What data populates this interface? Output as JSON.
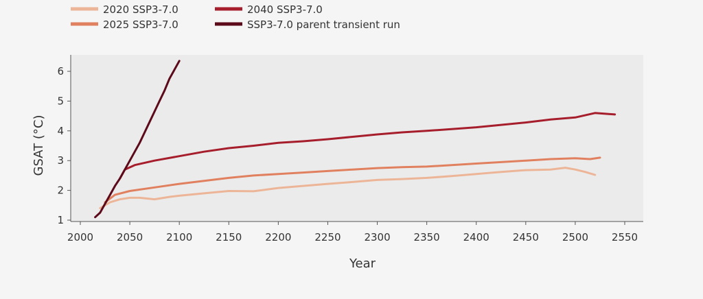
{
  "chart_data": {
    "type": "line",
    "title": "",
    "xlabel": "Year",
    "ylabel": "GSAT (°C)",
    "xlim": [
      2000,
      2560
    ],
    "ylim": [
      1,
      6.5
    ],
    "xticks": [
      2000,
      2050,
      2100,
      2150,
      2200,
      2250,
      2300,
      2350,
      2400,
      2450,
      2500,
      2550
    ],
    "yticks": [
      1,
      2,
      3,
      4,
      5,
      6
    ],
    "grid": false,
    "legend": "top-left, above plot, two columns",
    "series": [
      {
        "name": "2020 SSP3-7.0",
        "color": "#edb597",
        "points": [
          [
            2020,
            1.4
          ],
          [
            2030,
            1.6
          ],
          [
            2040,
            1.7
          ],
          [
            2050,
            1.75
          ],
          [
            2060,
            1.75
          ],
          [
            2075,
            1.7
          ],
          [
            2090,
            1.78
          ],
          [
            2100,
            1.82
          ],
          [
            2125,
            1.9
          ],
          [
            2150,
            1.98
          ],
          [
            2175,
            1.97
          ],
          [
            2200,
            2.08
          ],
          [
            2225,
            2.15
          ],
          [
            2250,
            2.22
          ],
          [
            2275,
            2.28
          ],
          [
            2300,
            2.35
          ],
          [
            2325,
            2.38
          ],
          [
            2350,
            2.42
          ],
          [
            2375,
            2.48
          ],
          [
            2400,
            2.55
          ],
          [
            2425,
            2.62
          ],
          [
            2450,
            2.68
          ],
          [
            2475,
            2.7
          ],
          [
            2490,
            2.76
          ],
          [
            2500,
            2.7
          ],
          [
            2510,
            2.62
          ],
          [
            2520,
            2.52
          ]
        ]
      },
      {
        "name": "2025 SSP3-7.0",
        "color": "#e0805e",
        "points": [
          [
            2025,
            1.6
          ],
          [
            2035,
            1.85
          ],
          [
            2050,
            1.98
          ],
          [
            2075,
            2.1
          ],
          [
            2100,
            2.22
          ],
          [
            2125,
            2.32
          ],
          [
            2150,
            2.42
          ],
          [
            2175,
            2.5
          ],
          [
            2200,
            2.55
          ],
          [
            2225,
            2.6
          ],
          [
            2250,
            2.65
          ],
          [
            2275,
            2.7
          ],
          [
            2300,
            2.75
          ],
          [
            2325,
            2.78
          ],
          [
            2350,
            2.8
          ],
          [
            2375,
            2.85
          ],
          [
            2400,
            2.9
          ],
          [
            2425,
            2.95
          ],
          [
            2450,
            3.0
          ],
          [
            2475,
            3.05
          ],
          [
            2500,
            3.08
          ],
          [
            2515,
            3.05
          ],
          [
            2525,
            3.1
          ]
        ]
      },
      {
        "name": "2040 SSP3-7.0",
        "color": "#a61d2b",
        "points": [
          [
            2040,
            2.4
          ],
          [
            2045,
            2.7
          ],
          [
            2055,
            2.85
          ],
          [
            2075,
            3.0
          ],
          [
            2100,
            3.15
          ],
          [
            2125,
            3.3
          ],
          [
            2150,
            3.42
          ],
          [
            2175,
            3.5
          ],
          [
            2200,
            3.6
          ],
          [
            2225,
            3.65
          ],
          [
            2250,
            3.72
          ],
          [
            2275,
            3.8
          ],
          [
            2300,
            3.88
          ],
          [
            2325,
            3.95
          ],
          [
            2350,
            4.0
          ],
          [
            2375,
            4.06
          ],
          [
            2400,
            4.12
          ],
          [
            2425,
            4.2
          ],
          [
            2450,
            4.28
          ],
          [
            2475,
            4.38
          ],
          [
            2500,
            4.45
          ],
          [
            2520,
            4.6
          ],
          [
            2540,
            4.55
          ]
        ]
      },
      {
        "name": "SSP3-7.0 parent transient run",
        "color": "#5c0a1a",
        "points": [
          [
            2015,
            1.1
          ],
          [
            2020,
            1.25
          ],
          [
            2025,
            1.55
          ],
          [
            2030,
            1.85
          ],
          [
            2035,
            2.15
          ],
          [
            2040,
            2.4
          ],
          [
            2045,
            2.7
          ],
          [
            2050,
            3.0
          ],
          [
            2055,
            3.3
          ],
          [
            2060,
            3.6
          ],
          [
            2065,
            3.95
          ],
          [
            2070,
            4.3
          ],
          [
            2075,
            4.65
          ],
          [
            2080,
            5.0
          ],
          [
            2085,
            5.35
          ],
          [
            2090,
            5.75
          ],
          [
            2095,
            6.05
          ],
          [
            2100,
            6.35
          ]
        ]
      }
    ]
  }
}
